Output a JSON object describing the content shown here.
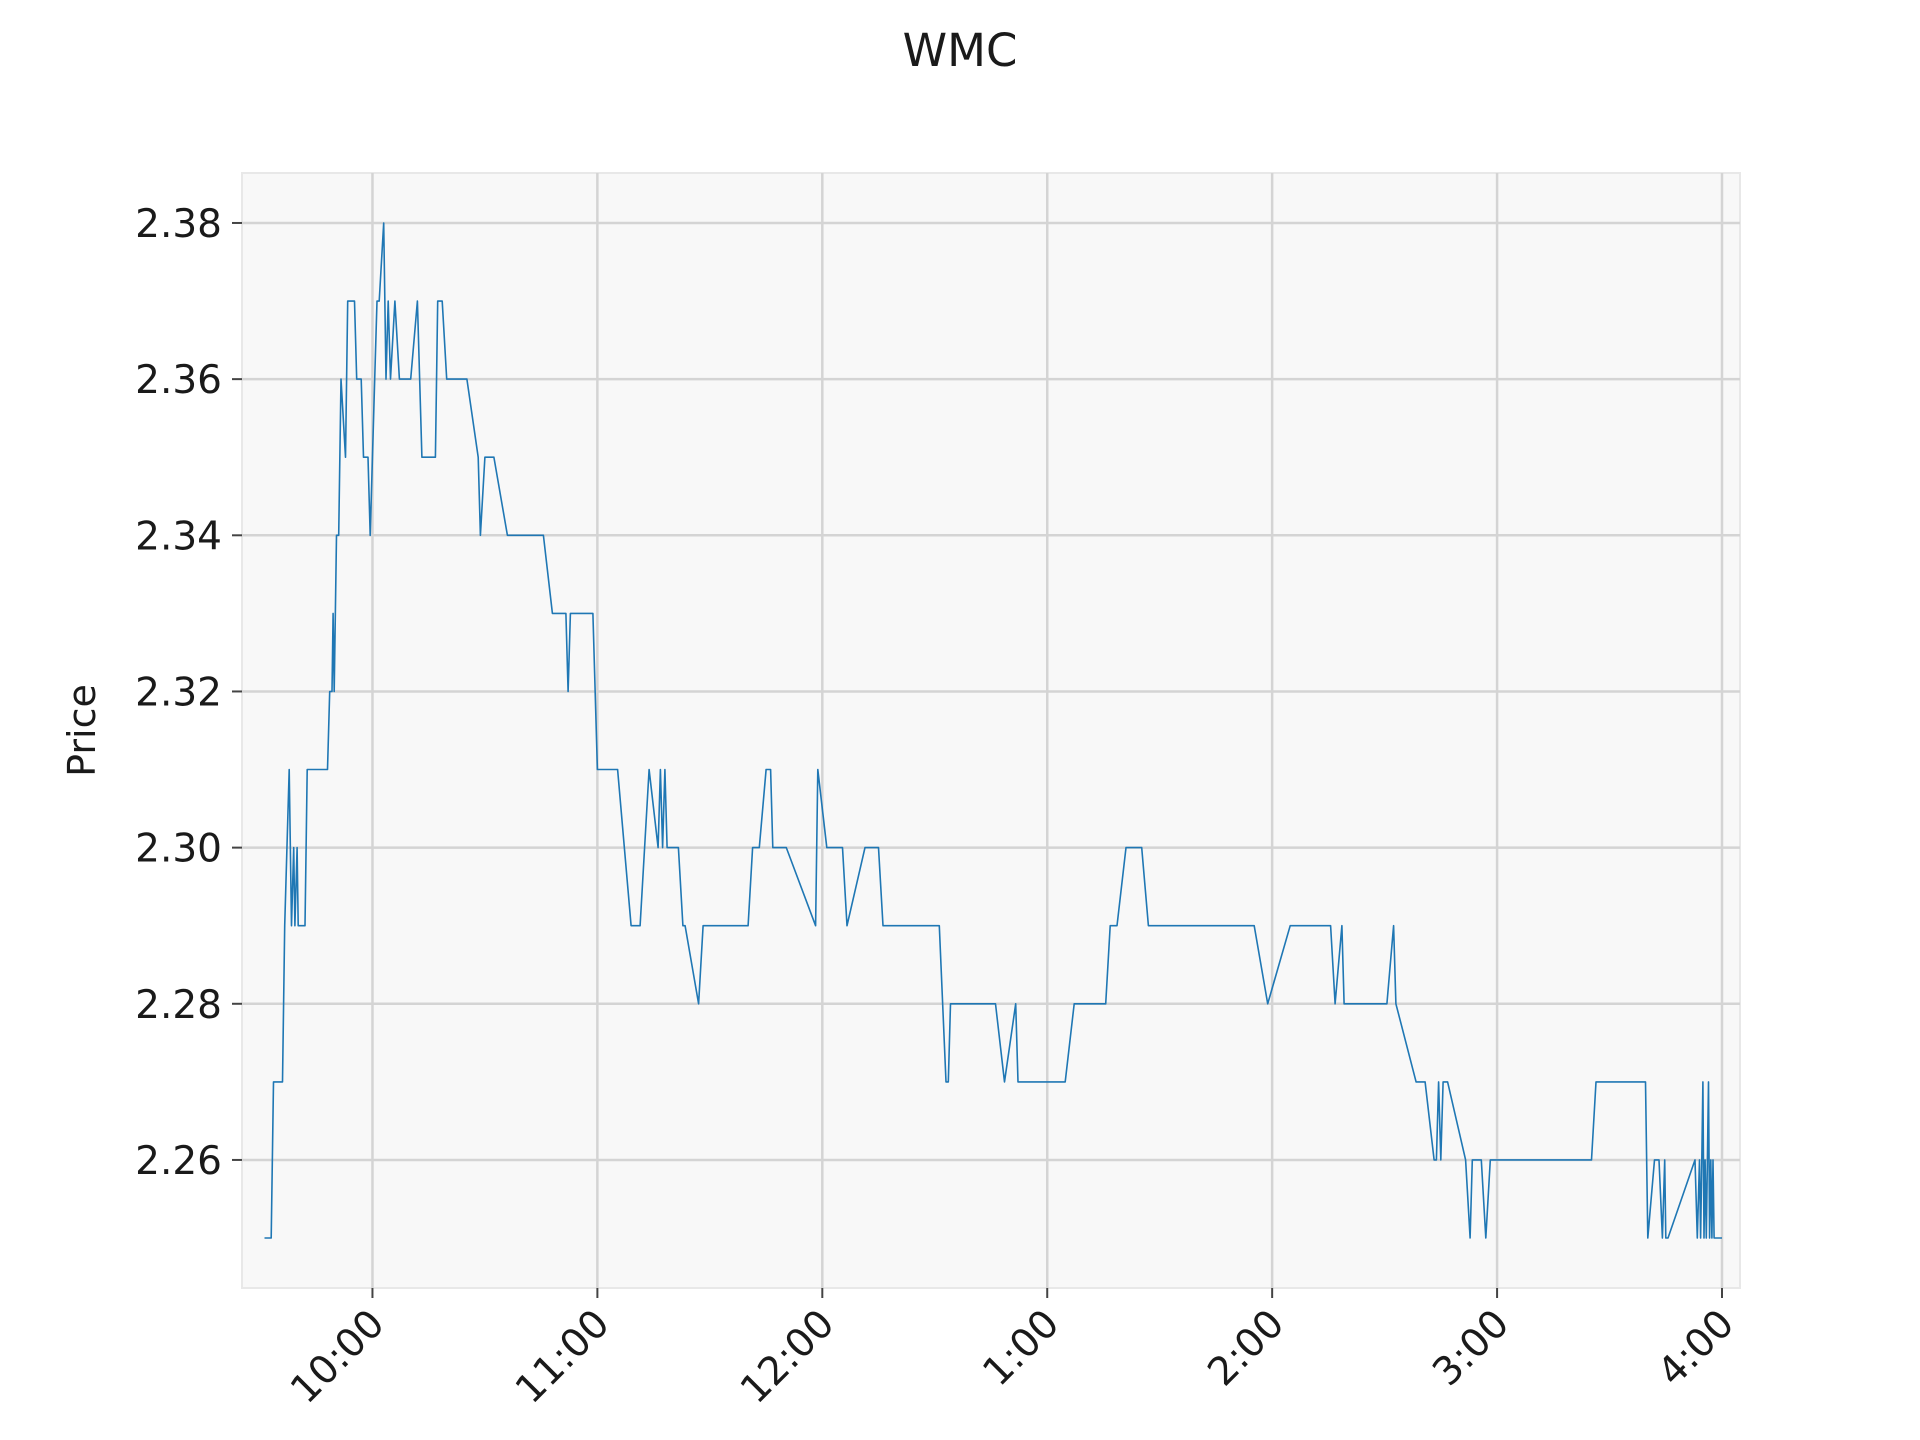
{
  "chart_data": {
    "type": "line",
    "title": "WMC",
    "xlabel": "",
    "ylabel": "Price",
    "xlim": [
      9.42,
      16.08
    ],
    "ylim": [
      2.2436,
      2.3864
    ],
    "grid": true,
    "legend": "none",
    "x_ticks": [
      {
        "value": 10,
        "label": "10:00"
      },
      {
        "value": 11,
        "label": "11:00"
      },
      {
        "value": 12,
        "label": "12:00"
      },
      {
        "value": 13,
        "label": "1:00"
      },
      {
        "value": 14,
        "label": "2:00"
      },
      {
        "value": 15,
        "label": "3:00"
      },
      {
        "value": 16,
        "label": "4:00"
      }
    ],
    "y_ticks": [
      {
        "value": 2.26,
        "label": "2.26"
      },
      {
        "value": 2.28,
        "label": "2.28"
      },
      {
        "value": 2.3,
        "label": "2.30"
      },
      {
        "value": 2.32,
        "label": "2.32"
      },
      {
        "value": 2.34,
        "label": "2.34"
      },
      {
        "value": 2.36,
        "label": "2.36"
      },
      {
        "value": 2.38,
        "label": "2.38"
      }
    ],
    "colors": {
      "line": "#1f77b4",
      "plot_background": "#f8f8f8",
      "grid": "#d4d4d4"
    },
    "series": [
      {
        "points": [
          [
            9.52,
            2.25
          ],
          [
            9.55,
            2.25
          ],
          [
            9.56,
            2.27
          ],
          [
            9.6,
            2.27
          ],
          [
            9.61,
            2.29
          ],
          [
            9.63,
            2.31
          ],
          [
            9.64,
            2.29
          ],
          [
            9.65,
            2.3
          ],
          [
            9.655,
            2.29
          ],
          [
            9.665,
            2.3
          ],
          [
            9.67,
            2.29
          ],
          [
            9.7,
            2.29
          ],
          [
            9.71,
            2.31
          ],
          [
            9.8,
            2.31
          ],
          [
            9.81,
            2.32
          ],
          [
            9.82,
            2.32
          ],
          [
            9.825,
            2.33
          ],
          [
            9.83,
            2.32
          ],
          [
            9.84,
            2.34
          ],
          [
            9.85,
            2.34
          ],
          [
            9.86,
            2.36
          ],
          [
            9.88,
            2.35
          ],
          [
            9.89,
            2.37
          ],
          [
            9.92,
            2.37
          ],
          [
            9.93,
            2.36
          ],
          [
            9.95,
            2.36
          ],
          [
            9.96,
            2.35
          ],
          [
            9.98,
            2.35
          ],
          [
            9.99,
            2.34
          ],
          [
            10.01,
            2.36
          ],
          [
            10.02,
            2.37
          ],
          [
            10.03,
            2.37
          ],
          [
            10.05,
            2.38
          ],
          [
            10.06,
            2.36
          ],
          [
            10.07,
            2.37
          ],
          [
            10.08,
            2.36
          ],
          [
            10.1,
            2.37
          ],
          [
            10.12,
            2.36
          ],
          [
            10.17,
            2.36
          ],
          [
            10.2,
            2.37
          ],
          [
            10.22,
            2.35
          ],
          [
            10.28,
            2.35
          ],
          [
            10.29,
            2.37
          ],
          [
            10.31,
            2.37
          ],
          [
            10.33,
            2.36
          ],
          [
            10.42,
            2.36
          ],
          [
            10.47,
            2.35
          ],
          [
            10.48,
            2.34
          ],
          [
            10.5,
            2.35
          ],
          [
            10.54,
            2.35
          ],
          [
            10.6,
            2.34
          ],
          [
            10.76,
            2.34
          ],
          [
            10.8,
            2.33
          ],
          [
            10.86,
            2.33
          ],
          [
            10.87,
            2.32
          ],
          [
            10.88,
            2.33
          ],
          [
            10.98,
            2.33
          ],
          [
            11.0,
            2.31
          ],
          [
            11.09,
            2.31
          ],
          [
            11.15,
            2.29
          ],
          [
            11.19,
            2.29
          ],
          [
            11.23,
            2.31
          ],
          [
            11.27,
            2.3
          ],
          [
            11.28,
            2.31
          ],
          [
            11.29,
            2.3
          ],
          [
            11.3,
            2.31
          ],
          [
            11.31,
            2.3
          ],
          [
            11.36,
            2.3
          ],
          [
            11.38,
            2.29
          ],
          [
            11.39,
            2.29
          ],
          [
            11.45,
            2.28
          ],
          [
            11.47,
            2.29
          ],
          [
            11.67,
            2.29
          ],
          [
            11.69,
            2.3
          ],
          [
            11.72,
            2.3
          ],
          [
            11.75,
            2.31
          ],
          [
            11.77,
            2.31
          ],
          [
            11.78,
            2.3
          ],
          [
            11.84,
            2.3
          ],
          [
            11.97,
            2.29
          ],
          [
            11.98,
            2.31
          ],
          [
            12.02,
            2.3
          ],
          [
            12.09,
            2.3
          ],
          [
            12.11,
            2.29
          ],
          [
            12.19,
            2.3
          ],
          [
            12.25,
            2.3
          ],
          [
            12.27,
            2.29
          ],
          [
            12.52,
            2.29
          ],
          [
            12.55,
            2.27
          ],
          [
            12.56,
            2.27
          ],
          [
            12.57,
            2.28
          ],
          [
            12.77,
            2.28
          ],
          [
            12.81,
            2.27
          ],
          [
            12.86,
            2.28
          ],
          [
            12.87,
            2.27
          ],
          [
            13.08,
            2.27
          ],
          [
            13.12,
            2.28
          ],
          [
            13.26,
            2.28
          ],
          [
            13.28,
            2.29
          ],
          [
            13.31,
            2.29
          ],
          [
            13.35,
            2.3
          ],
          [
            13.42,
            2.3
          ],
          [
            13.45,
            2.29
          ],
          [
            13.92,
            2.29
          ],
          [
            13.98,
            2.28
          ],
          [
            14.08,
            2.29
          ],
          [
            14.26,
            2.29
          ],
          [
            14.28,
            2.28
          ],
          [
            14.31,
            2.29
          ],
          [
            14.32,
            2.28
          ],
          [
            14.51,
            2.28
          ],
          [
            14.54,
            2.29
          ],
          [
            14.55,
            2.28
          ],
          [
            14.64,
            2.27
          ],
          [
            14.68,
            2.27
          ],
          [
            14.72,
            2.26
          ],
          [
            14.73,
            2.26
          ],
          [
            14.74,
            2.27
          ],
          [
            14.75,
            2.26
          ],
          [
            14.76,
            2.27
          ],
          [
            14.78,
            2.27
          ],
          [
            14.86,
            2.26
          ],
          [
            14.88,
            2.25
          ],
          [
            14.89,
            2.26
          ],
          [
            14.93,
            2.26
          ],
          [
            14.95,
            2.25
          ],
          [
            14.97,
            2.26
          ],
          [
            15.42,
            2.26
          ],
          [
            15.44,
            2.27
          ],
          [
            15.66,
            2.27
          ],
          [
            15.67,
            2.25
          ],
          [
            15.7,
            2.26
          ],
          [
            15.72,
            2.26
          ],
          [
            15.735,
            2.25
          ],
          [
            15.745,
            2.26
          ],
          [
            15.75,
            2.25
          ],
          [
            15.76,
            2.25
          ],
          [
            15.88,
            2.26
          ],
          [
            15.89,
            2.25
          ],
          [
            15.9,
            2.26
          ],
          [
            15.905,
            2.25
          ],
          [
            15.91,
            2.26
          ],
          [
            15.915,
            2.27
          ],
          [
            15.92,
            2.25
          ],
          [
            15.925,
            2.26
          ],
          [
            15.93,
            2.25
          ],
          [
            15.935,
            2.26
          ],
          [
            15.94,
            2.27
          ],
          [
            15.945,
            2.25
          ],
          [
            15.95,
            2.26
          ],
          [
            15.955,
            2.25
          ],
          [
            15.96,
            2.26
          ],
          [
            15.965,
            2.25
          ],
          [
            16.0,
            2.25
          ]
        ]
      }
    ]
  }
}
